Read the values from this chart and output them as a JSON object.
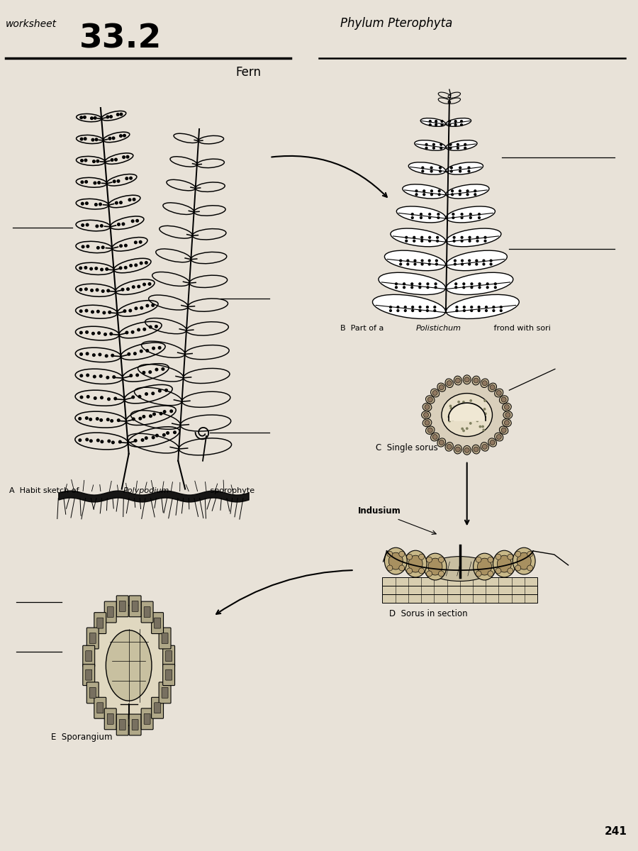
{
  "title_number": "33.2",
  "title_right": "Phylum Pterophyta",
  "main_title": "Fern",
  "bg_color": "#e8e2d8",
  "page_number": "241",
  "labels": {
    "A": "A  Habit sketch of ",
    "A_italic": "Polypodium",
    "A_rest": " sporophyte",
    "B": "B  Part of a ",
    "B_italic": "Polistichum",
    "B_rest": " frond with sori",
    "C": "C  Single sorus",
    "D": "D  Sorus in section",
    "E": "E  Sporangium",
    "indusium": "Indusium"
  }
}
